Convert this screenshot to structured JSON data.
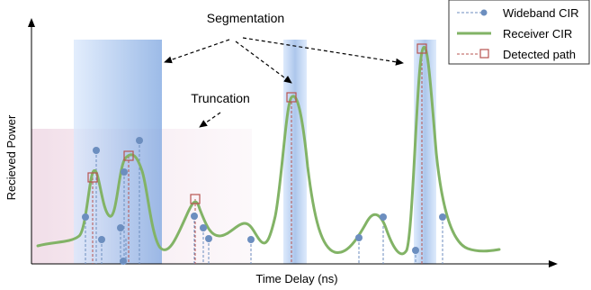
{
  "labels": {
    "segmentation": "Segmentation",
    "truncation": "Truncation",
    "xlabel": "Time Delay (ns)",
    "ylabel": "Recieved Power"
  },
  "legend": {
    "wideband": "Wideband CIR",
    "receiver": "Receiver CIR",
    "detected": "Detected path"
  },
  "colors": {
    "receiver_curve": "#82b366",
    "wideband_marker": "#6c8ebf",
    "detected_path": "#b85450",
    "segment_fill": "#7ea6e0",
    "truncation_fill": "#e6c3d6"
  },
  "chart_data": {
    "type": "line",
    "series": [
      {
        "name": "Receiver CIR",
        "kind": "curve"
      },
      {
        "name": "Wideband CIR",
        "kind": "stem-markers",
        "marker": "circle"
      },
      {
        "name": "Detected path",
        "kind": "stem-markers",
        "marker": "square"
      }
    ],
    "legend_position": "top-right",
    "grid": false
  }
}
